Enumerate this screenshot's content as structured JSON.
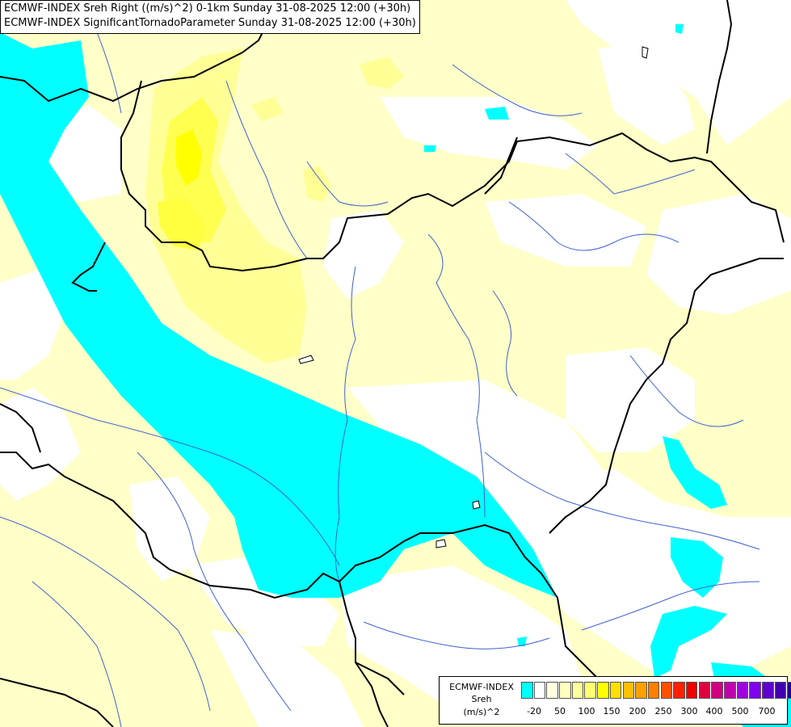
{
  "title": {
    "line1": "ECMWF-INDEX Sreh Right ((m/s)^2) 0-1km Sunday 31-08-2025 12:00 (+30h)",
    "line2": "ECMWF-INDEX SignificantTornadoParameter Sunday 31-08-2025 12:00 (+30h)"
  },
  "legend": {
    "name_line1": "ECMWF-INDEX",
    "name_line2": "Sreh",
    "unit": "(m/s)^2",
    "colors": [
      "#00ffff",
      "#ffffff",
      "#ffffe0",
      "#ffffc0",
      "#ffff9e",
      "#ffff70",
      "#ffff00",
      "#ffe000",
      "#ffc000",
      "#ffa000",
      "#ff8000",
      "#ff5000",
      "#ff2000",
      "#f00000",
      "#e00040",
      "#d00080",
      "#c000b0",
      "#a000e0",
      "#8000f0",
      "#6000d0",
      "#4000b0",
      "#200090",
      "#000080"
    ],
    "ticks": [
      "-20",
      "50",
      "100",
      "150",
      "200",
      "250",
      "300",
      "400",
      "500",
      "700"
    ]
  },
  "map_colors": {
    "light_yellow": "#ffffc8",
    "yellow_mid": "#ffff96",
    "yellow_strong": "#ffff00",
    "cyan": "#00ffff",
    "river": "#4060d0",
    "border": "#000000"
  }
}
